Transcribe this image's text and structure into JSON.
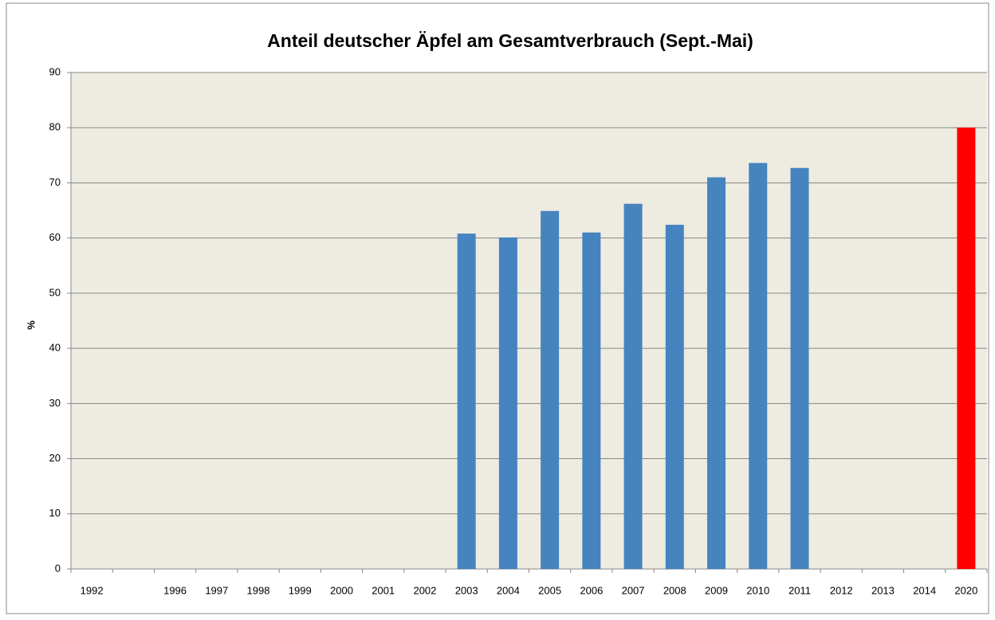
{
  "chart_data": {
    "type": "bar",
    "title": "Anteil deutscher Äpfel am Gesamtverbrauch (Sept.-Mai)",
    "y_label": "%",
    "categories": [
      "1992",
      null,
      "1996",
      "1997",
      "1998",
      "1999",
      "2000",
      "2001",
      "2002",
      "2003",
      "2004",
      "2005",
      "2006",
      "2007",
      "2008",
      "2009",
      "2010",
      "2011",
      "2012",
      "2013",
      "2014",
      "2020"
    ],
    "values": [
      null,
      null,
      null,
      null,
      null,
      null,
      null,
      null,
      null,
      60.8,
      60.1,
      64.9,
      61.0,
      66.2,
      62.4,
      71.0,
      73.6,
      72.7,
      null,
      null,
      null,
      80
    ],
    "colors": [
      "#4584bf",
      "#4584bf",
      "#4584bf",
      "#4584bf",
      "#4584bf",
      "#4584bf",
      "#4584bf",
      "#4584bf",
      "#4584bf",
      "#4584bf",
      "#4584bf",
      "#4584bf",
      "#4584bf",
      "#4584bf",
      "#4584bf",
      "#4584bf",
      "#4584bf",
      "#4584bf",
      "#4584bf",
      "#4584bf",
      "#4584bf",
      "#ff0000"
    ],
    "ylim": [
      0,
      90
    ],
    "yticks": [
      0,
      10,
      20,
      30,
      40,
      50,
      60,
      70,
      80,
      90
    ],
    "grid": true
  }
}
